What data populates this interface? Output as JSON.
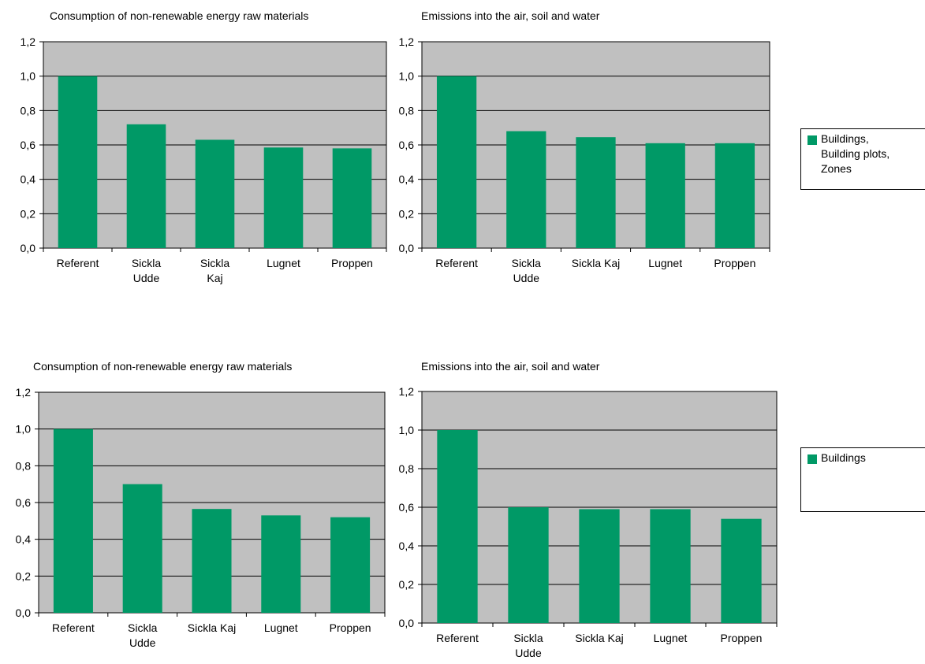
{
  "colors": {
    "bar": "#009966",
    "plot_bg": "#c0c0c0",
    "border": "#000000"
  },
  "legends": [
    {
      "label": "Buildings,\nBuilding plots,\nZones"
    },
    {
      "label": "Buildings"
    }
  ],
  "chart_data": [
    {
      "type": "bar",
      "title": "Consumption of non-renewable energy raw materials",
      "categories": [
        "Referent",
        "Sickla\nUdde",
        "Sickla\nKaj",
        "Lugnet",
        "Proppen"
      ],
      "values": [
        1.0,
        0.72,
        0.63,
        0.585,
        0.58
      ],
      "yticks": [
        "0,0",
        "0,2",
        "0,4",
        "0,6",
        "0,8",
        "1,0",
        "1,2"
      ],
      "ylim": [
        0,
        1.2
      ],
      "grid": true,
      "series": [
        {
          "name": "Buildings, Building plots, Zones",
          "values": [
            1.0,
            0.72,
            0.63,
            0.585,
            0.58
          ]
        }
      ]
    },
    {
      "type": "bar",
      "title": "Emissions into the air, soil and water",
      "categories": [
        "Referent",
        "Sickla\nUdde",
        "Sickla Kaj",
        "Lugnet",
        "Proppen"
      ],
      "values": [
        1.0,
        0.68,
        0.645,
        0.61,
        0.61
      ],
      "yticks": [
        "0,0",
        "0,2",
        "0,4",
        "0,6",
        "0,8",
        "1,0",
        "1,2"
      ],
      "ylim": [
        0,
        1.2
      ],
      "grid": true,
      "series": [
        {
          "name": "Buildings, Building plots, Zones",
          "values": [
            1.0,
            0.68,
            0.645,
            0.61,
            0.61
          ]
        }
      ]
    },
    {
      "type": "bar",
      "title": "Consumption of non-renewable energy raw materials",
      "categories": [
        "Referent",
        "Sickla\nUdde",
        "Sickla Kaj",
        "Lugnet",
        "Proppen"
      ],
      "values": [
        1.0,
        0.7,
        0.565,
        0.53,
        0.52
      ],
      "yticks": [
        "0,0",
        "0,2",
        "0,4",
        "0,6",
        "0,8",
        "1,0",
        "1,2"
      ],
      "ylim": [
        0,
        1.2
      ],
      "grid": true,
      "series": [
        {
          "name": "Buildings",
          "values": [
            1.0,
            0.7,
            0.565,
            0.53,
            0.52
          ]
        }
      ]
    },
    {
      "type": "bar",
      "title": "Emissions into the air, soil and water",
      "categories": [
        "Referent",
        "Sickla\nUdde",
        "Sickla Kaj",
        "Lugnet",
        "Proppen"
      ],
      "values": [
        1.0,
        0.6,
        0.59,
        0.59,
        0.54
      ],
      "yticks": [
        "0,0",
        "0,2",
        "0,4",
        "0,6",
        "0,8",
        "1,0",
        "1,2"
      ],
      "ylim": [
        0,
        1.2
      ],
      "grid": true,
      "series": [
        {
          "name": "Buildings",
          "values": [
            1.0,
            0.6,
            0.59,
            0.59,
            0.54
          ]
        }
      ]
    }
  ]
}
